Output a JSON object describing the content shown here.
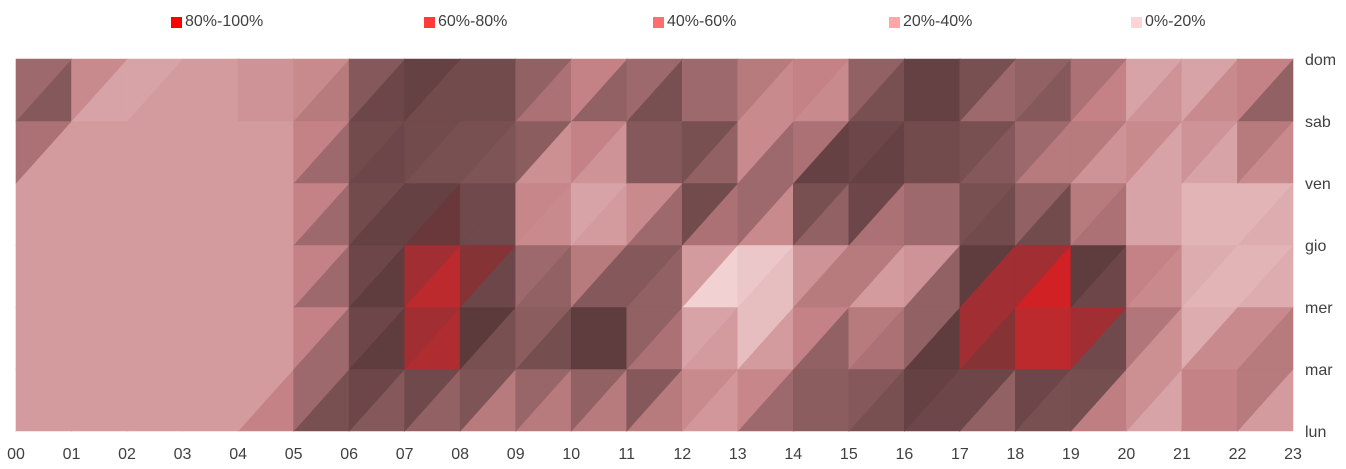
{
  "chart_data": {
    "type": "heatmap",
    "title": "",
    "xlabel": "",
    "ylabel": "",
    "x_categories": [
      "00",
      "01",
      "02",
      "03",
      "04",
      "05",
      "06",
      "07",
      "08",
      "09",
      "10",
      "11",
      "12",
      "13",
      "14",
      "15",
      "16",
      "17",
      "18",
      "19",
      "20",
      "21",
      "22",
      "23"
    ],
    "y_categories": [
      "lun",
      "mar",
      "mer",
      "gio",
      "ven",
      "sab",
      "dom"
    ],
    "legend_position": "top",
    "legend": [
      {
        "label": "80%-100%",
        "color": "#ff0000"
      },
      {
        "label": "60%-80%",
        "color": "#ff3b3b"
      },
      {
        "label": "40%-60%",
        "color": "#ff6e6e"
      },
      {
        "label": "20%-40%",
        "color": "#ffa6a6"
      },
      {
        "label": "0%-20%",
        "color": "#ffd4d4"
      }
    ],
    "values": [
      [
        30,
        30,
        30,
        30,
        30,
        60,
        60,
        30,
        45,
        40,
        20,
        40,
        30,
        45,
        55,
        50,
        70,
        50,
        40,
        50,
        30,
        20,
        30,
        30
      ],
      [
        30,
        30,
        30,
        30,
        30,
        30,
        60,
        80,
        85,
        45,
        70,
        70,
        60,
        20,
        50,
        60,
        60,
        80,
        70,
        90,
        45,
        30,
        70,
        30
      ],
      [
        30,
        30,
        30,
        30,
        30,
        30,
        60,
        80,
        90,
        50,
        70,
        80,
        10,
        10,
        20,
        50,
        20,
        80,
        90,
        100,
        60,
        30,
        10,
        30
      ],
      [
        30,
        30,
        30,
        30,
        30,
        30,
        60,
        80,
        90,
        60,
        40,
        20,
        70,
        10,
        20,
        60,
        20,
        60,
        80,
        80,
        40,
        20,
        20,
        30
      ],
      [
        30,
        30,
        30,
        30,
        30,
        30,
        60,
        70,
        60,
        45,
        10,
        30,
        60,
        60,
        80,
        80,
        60,
        70,
        50,
        30,
        20,
        20,
        20,
        20
      ],
      [
        80,
        30,
        30,
        30,
        30,
        30,
        60,
        70,
        50,
        70,
        50,
        60,
        80,
        40,
        10,
        50,
        70,
        60,
        50,
        50,
        50,
        40,
        40,
        70
      ],
      [
        10,
        60,
        20,
        30,
        30,
        40,
        40,
        70,
        70,
        70,
        20,
        50,
        40,
        30,
        60,
        50,
        60,
        80,
        40,
        70,
        20,
        10,
        30,
        50
      ]
    ]
  }
}
